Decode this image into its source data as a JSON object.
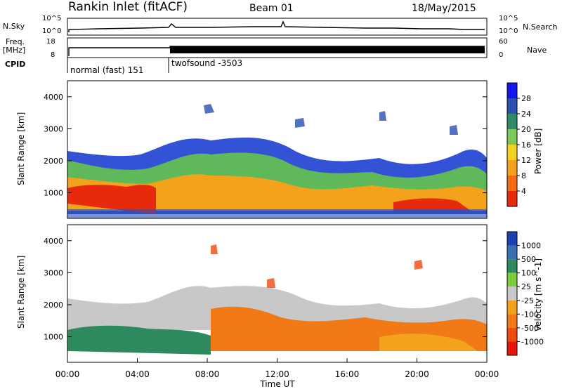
{
  "header": {
    "station": "Rankin Inlet (fitACF)",
    "beam": "Beam 01",
    "date": "18/May/2015"
  },
  "top_panels": {
    "nsky_label": "N.Sky",
    "nsky_ticks": [
      "10^5",
      "10^0"
    ],
    "nsearch_label": "N.Search",
    "nsearch_ticks": [
      "10^5",
      "10^0"
    ],
    "freq_label_1": "Freq.",
    "freq_label_2": "[MHz]",
    "freq_ticks": [
      "18",
      "8"
    ],
    "nave_label": "Nave",
    "nave_ticks": [
      "60",
      "0"
    ],
    "cpid_label": "CPID",
    "cpid_segments": [
      "normal (fast) 151",
      "twofsound -3503"
    ]
  },
  "chart_data": [
    {
      "type": "heatmap",
      "name": "power-panel",
      "ylabel": "Slant Range [km]",
      "yticks": [
        "1000",
        "2000",
        "3000",
        "4000"
      ],
      "ylim": [
        200,
        4500
      ],
      "colorbar_label": "Power [dB]",
      "colorbar_ticks": [
        "4",
        "8",
        "12",
        "16",
        "20",
        "24",
        "28"
      ],
      "colorbar_colors": [
        "#1414f0",
        "#2a4fb0",
        "#2f8a6a",
        "#7cc85a",
        "#f2d21f",
        "#f3a21b",
        "#f26b16",
        "#e82a0c"
      ],
      "grid": false
    },
    {
      "type": "heatmap",
      "name": "velocity-panel",
      "ylabel": "Slant Range [km]",
      "yticks": [
        "1000",
        "2000",
        "3000",
        "4000"
      ],
      "ylim": [
        200,
        4500
      ],
      "xlabel": "Time UT",
      "xticks": [
        "00:00",
        "04:00",
        "08:00",
        "12:00",
        "16:00",
        "20:00",
        "00:00"
      ],
      "colorbar_label": "Velocity [m s^-1]",
      "colorbar_ticks": [
        "1000",
        "500",
        "100",
        "25",
        "-25",
        "-100",
        "-500",
        "-1000"
      ],
      "colorbar_colors": [
        "#1d3fb3",
        "#3a6fb0",
        "#2e8a5e",
        "#7ccc3a",
        "#c8c8c8",
        "#f3a21b",
        "#f27a16",
        "#ef4a10",
        "#e8140c"
      ],
      "grid": false
    }
  ],
  "colors": {
    "power_red": "#e82a0c",
    "power_green": "#7cc85a",
    "velocity_orange": "#f27a16",
    "velocity_grey": "#c8c8c8",
    "velocity_green": "#2e8a5e"
  }
}
